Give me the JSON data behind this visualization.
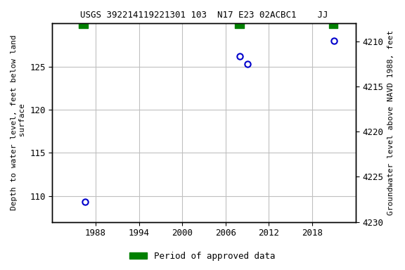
{
  "title": "USGS 392214119221301 103  N17 E23 02ACBC1    JJ",
  "ylabel_left": "Depth to water level, feet below land\n surface",
  "ylabel_right": "Groundwater level above NAVD 1988, feet",
  "data_points": [
    {
      "year": 1986.5,
      "depth": 109.3
    },
    {
      "year": 2008.0,
      "depth": 126.2
    },
    {
      "year": 2009.0,
      "depth": 125.3
    },
    {
      "year": 2021.0,
      "depth": 128.0
    }
  ],
  "approved_periods": [
    {
      "start": 1985.7,
      "end": 1986.9
    },
    {
      "start": 2007.3,
      "end": 2008.5
    },
    {
      "start": 2020.3,
      "end": 2021.5
    }
  ],
  "xlim": [
    1982,
    2024
  ],
  "ylim_left_top": 107,
  "ylim_left_bottom": 130,
  "ylim_right_top": 4230,
  "ylim_right_bottom": 4208,
  "xticks": [
    1988,
    1994,
    2000,
    2006,
    2012,
    2018
  ],
  "yticks_left": [
    110,
    115,
    120,
    125
  ],
  "yticks_right": [
    4210,
    4215,
    4220,
    4225,
    4230
  ],
  "grid_color": "#c0c0c0",
  "point_color": "#0000cc",
  "approved_color": "#008000",
  "background_color": "#ffffff",
  "title_fontsize": 9,
  "tick_fontsize": 9,
  "label_fontsize": 8,
  "legend_fontsize": 9
}
